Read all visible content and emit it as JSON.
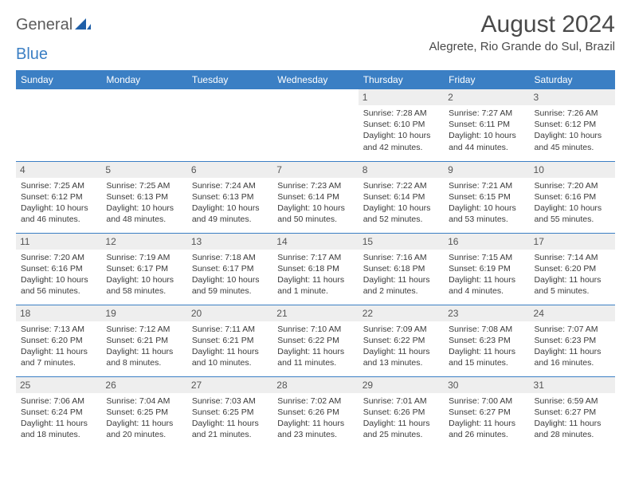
{
  "brand": {
    "part1": "General",
    "part2": "Blue"
  },
  "title": {
    "month": "August 2024",
    "location": "Alegrete, Rio Grande do Sul, Brazil"
  },
  "colors": {
    "header_bg": "#3b7fc4",
    "header_text": "#ffffff",
    "daynum_bg": "#eeeeee",
    "rule": "#3b7fc4",
    "text": "#3a3a3a",
    "brand_gray": "#5c5c5c",
    "brand_blue": "#3b7fc4"
  },
  "weekdays": [
    "Sunday",
    "Monday",
    "Tuesday",
    "Wednesday",
    "Thursday",
    "Friday",
    "Saturday"
  ],
  "labels": {
    "sunrise": "Sunrise:",
    "sunset": "Sunset:",
    "daylight": "Daylight:"
  },
  "grid": [
    [
      null,
      null,
      null,
      null,
      {
        "n": "1",
        "sunrise": "7:28 AM",
        "sunset": "6:10 PM",
        "daylight": "10 hours and 42 minutes."
      },
      {
        "n": "2",
        "sunrise": "7:27 AM",
        "sunset": "6:11 PM",
        "daylight": "10 hours and 44 minutes."
      },
      {
        "n": "3",
        "sunrise": "7:26 AM",
        "sunset": "6:12 PM",
        "daylight": "10 hours and 45 minutes."
      }
    ],
    [
      {
        "n": "4",
        "sunrise": "7:25 AM",
        "sunset": "6:12 PM",
        "daylight": "10 hours and 46 minutes."
      },
      {
        "n": "5",
        "sunrise": "7:25 AM",
        "sunset": "6:13 PM",
        "daylight": "10 hours and 48 minutes."
      },
      {
        "n": "6",
        "sunrise": "7:24 AM",
        "sunset": "6:13 PM",
        "daylight": "10 hours and 49 minutes."
      },
      {
        "n": "7",
        "sunrise": "7:23 AM",
        "sunset": "6:14 PM",
        "daylight": "10 hours and 50 minutes."
      },
      {
        "n": "8",
        "sunrise": "7:22 AM",
        "sunset": "6:14 PM",
        "daylight": "10 hours and 52 minutes."
      },
      {
        "n": "9",
        "sunrise": "7:21 AM",
        "sunset": "6:15 PM",
        "daylight": "10 hours and 53 minutes."
      },
      {
        "n": "10",
        "sunrise": "7:20 AM",
        "sunset": "6:16 PM",
        "daylight": "10 hours and 55 minutes."
      }
    ],
    [
      {
        "n": "11",
        "sunrise": "7:20 AM",
        "sunset": "6:16 PM",
        "daylight": "10 hours and 56 minutes."
      },
      {
        "n": "12",
        "sunrise": "7:19 AM",
        "sunset": "6:17 PM",
        "daylight": "10 hours and 58 minutes."
      },
      {
        "n": "13",
        "sunrise": "7:18 AM",
        "sunset": "6:17 PM",
        "daylight": "10 hours and 59 minutes."
      },
      {
        "n": "14",
        "sunrise": "7:17 AM",
        "sunset": "6:18 PM",
        "daylight": "11 hours and 1 minute."
      },
      {
        "n": "15",
        "sunrise": "7:16 AM",
        "sunset": "6:18 PM",
        "daylight": "11 hours and 2 minutes."
      },
      {
        "n": "16",
        "sunrise": "7:15 AM",
        "sunset": "6:19 PM",
        "daylight": "11 hours and 4 minutes."
      },
      {
        "n": "17",
        "sunrise": "7:14 AM",
        "sunset": "6:20 PM",
        "daylight": "11 hours and 5 minutes."
      }
    ],
    [
      {
        "n": "18",
        "sunrise": "7:13 AM",
        "sunset": "6:20 PM",
        "daylight": "11 hours and 7 minutes."
      },
      {
        "n": "19",
        "sunrise": "7:12 AM",
        "sunset": "6:21 PM",
        "daylight": "11 hours and 8 minutes."
      },
      {
        "n": "20",
        "sunrise": "7:11 AM",
        "sunset": "6:21 PM",
        "daylight": "11 hours and 10 minutes."
      },
      {
        "n": "21",
        "sunrise": "7:10 AM",
        "sunset": "6:22 PM",
        "daylight": "11 hours and 11 minutes."
      },
      {
        "n": "22",
        "sunrise": "7:09 AM",
        "sunset": "6:22 PM",
        "daylight": "11 hours and 13 minutes."
      },
      {
        "n": "23",
        "sunrise": "7:08 AM",
        "sunset": "6:23 PM",
        "daylight": "11 hours and 15 minutes."
      },
      {
        "n": "24",
        "sunrise": "7:07 AM",
        "sunset": "6:23 PM",
        "daylight": "11 hours and 16 minutes."
      }
    ],
    [
      {
        "n": "25",
        "sunrise": "7:06 AM",
        "sunset": "6:24 PM",
        "daylight": "11 hours and 18 minutes."
      },
      {
        "n": "26",
        "sunrise": "7:04 AM",
        "sunset": "6:25 PM",
        "daylight": "11 hours and 20 minutes."
      },
      {
        "n": "27",
        "sunrise": "7:03 AM",
        "sunset": "6:25 PM",
        "daylight": "11 hours and 21 minutes."
      },
      {
        "n": "28",
        "sunrise": "7:02 AM",
        "sunset": "6:26 PM",
        "daylight": "11 hours and 23 minutes."
      },
      {
        "n": "29",
        "sunrise": "7:01 AM",
        "sunset": "6:26 PM",
        "daylight": "11 hours and 25 minutes."
      },
      {
        "n": "30",
        "sunrise": "7:00 AM",
        "sunset": "6:27 PM",
        "daylight": "11 hours and 26 minutes."
      },
      {
        "n": "31",
        "sunrise": "6:59 AM",
        "sunset": "6:27 PM",
        "daylight": "11 hours and 28 minutes."
      }
    ]
  ]
}
